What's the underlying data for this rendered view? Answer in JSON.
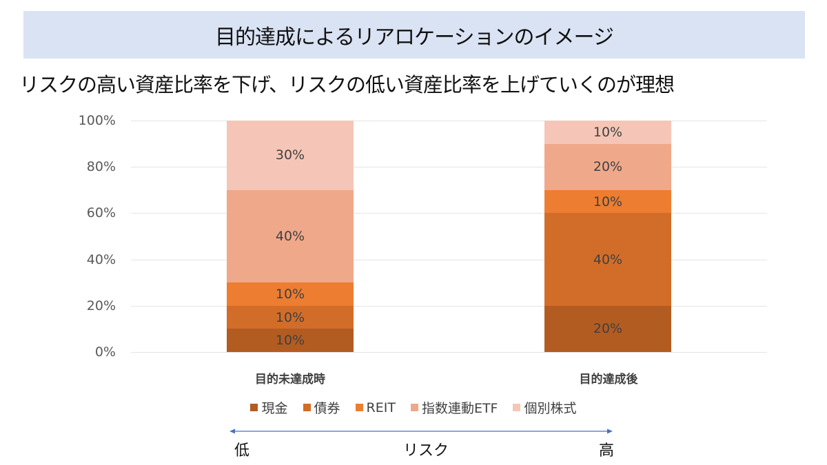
{
  "header": {
    "title": "目的達成によるリアロケーションのイメージ"
  },
  "subtitle": "リスクの高い資産比率を下げ、リスクの低い資産比率を上げていくのが理想",
  "axis": {
    "y_ticks": [
      "0%",
      "20%",
      "40%",
      "60%",
      "80%",
      "100%"
    ]
  },
  "categories": [
    "目的未達成時",
    "目的達成後"
  ],
  "legend": [
    {
      "label": "現金",
      "color": "#b35c22"
    },
    {
      "label": "債券",
      "color": "#d26d29"
    },
    {
      "label": "REIT",
      "color": "#ed7d31"
    },
    {
      "label": "指数連動ETF",
      "color": "#f0a88a"
    },
    {
      "label": "個別株式",
      "color": "#f5c6b7"
    }
  ],
  "risk_axis": {
    "low": "低",
    "label": "リスク",
    "high": "高",
    "arrow_color": "#4472c4"
  },
  "chart_data": {
    "type": "bar",
    "stacked": true,
    "title": "目的達成によるリアロケーションのイメージ",
    "subtitle": "リスクの高い資産比率を下げ、リスクの低い資産比率を上げていくのが理想",
    "categories": [
      "目的未達成時",
      "目的達成後"
    ],
    "series": [
      {
        "name": "現金",
        "values": [
          10,
          20
        ],
        "color": "#b35c22"
      },
      {
        "name": "債券",
        "values": [
          10,
          40
        ],
        "color": "#d26d29"
      },
      {
        "name": "REIT",
        "values": [
          10,
          10
        ],
        "color": "#ed7d31"
      },
      {
        "name": "指数連動ETF",
        "values": [
          40,
          20
        ],
        "color": "#f0a88a"
      },
      {
        "name": "個別株式",
        "values": [
          30,
          10
        ],
        "color": "#f5c6b7"
      }
    ],
    "data_labels": [
      [
        "10%",
        "10%",
        "10%",
        "40%",
        "30%"
      ],
      [
        "20%",
        "40%",
        "10%",
        "20%",
        "10%"
      ]
    ],
    "xlabel": "",
    "ylabel": "",
    "ylim": [
      0,
      100
    ],
    "y_ticks": [
      "0%",
      "20%",
      "40%",
      "60%",
      "80%",
      "100%"
    ],
    "grid": true,
    "legend_position": "bottom",
    "annotation": {
      "arrow": "bidirectional",
      "left": "低",
      "center": "リスク",
      "right": "高"
    }
  }
}
